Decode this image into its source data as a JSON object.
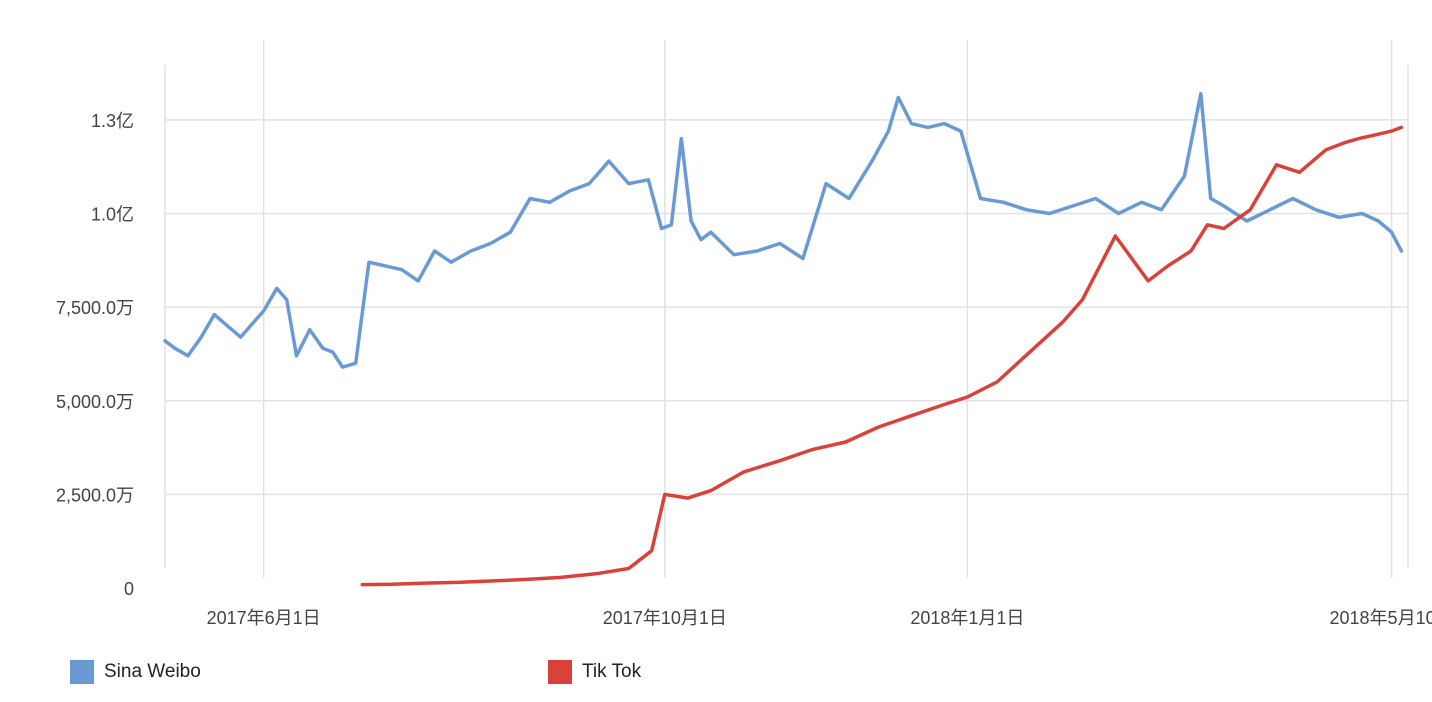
{
  "chart_data": {
    "type": "line",
    "title": "",
    "xlabel": "",
    "ylabel": "",
    "y_tick_labels": [
      "0",
      "2,500.0万",
      "5,000.0万",
      "7,500.0万",
      "1.0亿",
      "1.3亿"
    ],
    "y_tick_values": [
      0,
      25000000,
      50000000,
      75000000,
      100000000,
      125000000
    ],
    "ylim": [
      0,
      145000000
    ],
    "x_tick_labels": [
      "2017年6月1日",
      "2017年10月1日",
      "2018年1月1日",
      "2018年5月10日"
    ],
    "x_tick_dates": [
      "2017-06-01",
      "2017-10-01",
      "2018-01-01",
      "2018-05-10"
    ],
    "xlim": [
      "2017-05-02",
      "2018-05-15"
    ],
    "grid": true,
    "legend_position": "bottom-left",
    "series": [
      {
        "name": "Sina Weibo",
        "color": "#6a9ad3",
        "x": [
          "2017-05-02",
          "2017-05-05",
          "2017-05-09",
          "2017-05-13",
          "2017-05-17",
          "2017-05-21",
          "2017-05-25",
          "2017-05-29",
          "2017-06-01",
          "2017-06-05",
          "2017-06-08",
          "2017-06-11",
          "2017-06-15",
          "2017-06-19",
          "2017-06-22",
          "2017-06-25",
          "2017-06-29",
          "2017-07-03",
          "2017-07-08",
          "2017-07-13",
          "2017-07-18",
          "2017-07-23",
          "2017-07-28",
          "2017-08-03",
          "2017-08-09",
          "2017-08-15",
          "2017-08-21",
          "2017-08-27",
          "2017-09-02",
          "2017-09-08",
          "2017-09-14",
          "2017-09-20",
          "2017-09-26",
          "2017-09-30",
          "2017-10-03",
          "2017-10-06",
          "2017-10-09",
          "2017-10-12",
          "2017-10-15",
          "2017-10-22",
          "2017-10-29",
          "2017-11-05",
          "2017-11-12",
          "2017-11-19",
          "2017-11-26",
          "2017-12-03",
          "2017-12-08",
          "2017-12-11",
          "2017-12-15",
          "2017-12-20",
          "2017-12-25",
          "2017-12-30",
          "2018-01-05",
          "2018-01-12",
          "2018-01-19",
          "2018-01-26",
          "2018-02-02",
          "2018-02-09",
          "2018-02-16",
          "2018-02-23",
          "2018-03-01",
          "2018-03-08",
          "2018-03-13",
          "2018-03-16",
          "2018-03-20",
          "2018-03-27",
          "2018-04-03",
          "2018-04-10",
          "2018-04-17",
          "2018-04-24",
          "2018-05-01",
          "2018-05-06",
          "2018-05-10",
          "2018-05-13"
        ],
        "values": [
          66000000,
          64000000,
          62000000,
          67000000,
          73000000,
          70000000,
          67000000,
          71000000,
          74000000,
          80000000,
          77000000,
          62000000,
          69000000,
          64000000,
          63000000,
          59000000,
          60000000,
          87000000,
          86000000,
          85000000,
          82000000,
          90000000,
          87000000,
          90000000,
          92000000,
          95000000,
          104000000,
          103000000,
          106000000,
          108000000,
          114000000,
          108000000,
          109000000,
          96000000,
          97000000,
          120000000,
          98000000,
          93000000,
          95000000,
          89000000,
          90000000,
          92000000,
          88000000,
          108000000,
          104000000,
          114000000,
          122000000,
          131000000,
          124000000,
          123000000,
          124000000,
          122000000,
          104000000,
          103000000,
          101000000,
          100000000,
          102000000,
          104000000,
          100000000,
          103000000,
          101000000,
          110000000,
          132000000,
          104000000,
          102000000,
          98000000,
          101000000,
          104000000,
          101000000,
          99000000,
          100000000,
          98000000,
          95000000,
          90000000
        ]
      },
      {
        "name": "Tik Tok",
        "color": "#d9423a",
        "x": [
          "2017-07-01",
          "2017-07-10",
          "2017-07-20",
          "2017-07-30",
          "2017-08-10",
          "2017-08-20",
          "2017-08-30",
          "2017-09-10",
          "2017-09-20",
          "2017-09-27",
          "2017-10-01",
          "2017-10-08",
          "2017-10-15",
          "2017-10-25",
          "2017-11-05",
          "2017-11-15",
          "2017-11-25",
          "2017-12-05",
          "2017-12-15",
          "2017-12-25",
          "2018-01-01",
          "2018-01-10",
          "2018-01-20",
          "2018-01-30",
          "2018-02-05",
          "2018-02-15",
          "2018-02-25",
          "2018-03-03",
          "2018-03-10",
          "2018-03-15",
          "2018-03-20",
          "2018-03-28",
          "2018-04-05",
          "2018-04-12",
          "2018-04-20",
          "2018-04-26",
          "2018-04-30",
          "2018-05-05",
          "2018-05-10",
          "2018-05-13"
        ],
        "values": [
          900000,
          1000000,
          1300000,
          1500000,
          1900000,
          2300000,
          2800000,
          3800000,
          5200000,
          10000000,
          25000000,
          24000000,
          26000000,
          31000000,
          34000000,
          37000000,
          39000000,
          43000000,
          46000000,
          49000000,
          51000000,
          55000000,
          63000000,
          71000000,
          77000000,
          94000000,
          82000000,
          86000000,
          90000000,
          97000000,
          96000000,
          101000000,
          113000000,
          111000000,
          117000000,
          119000000,
          120000000,
          121000000,
          122000000,
          123000000
        ]
      }
    ]
  }
}
